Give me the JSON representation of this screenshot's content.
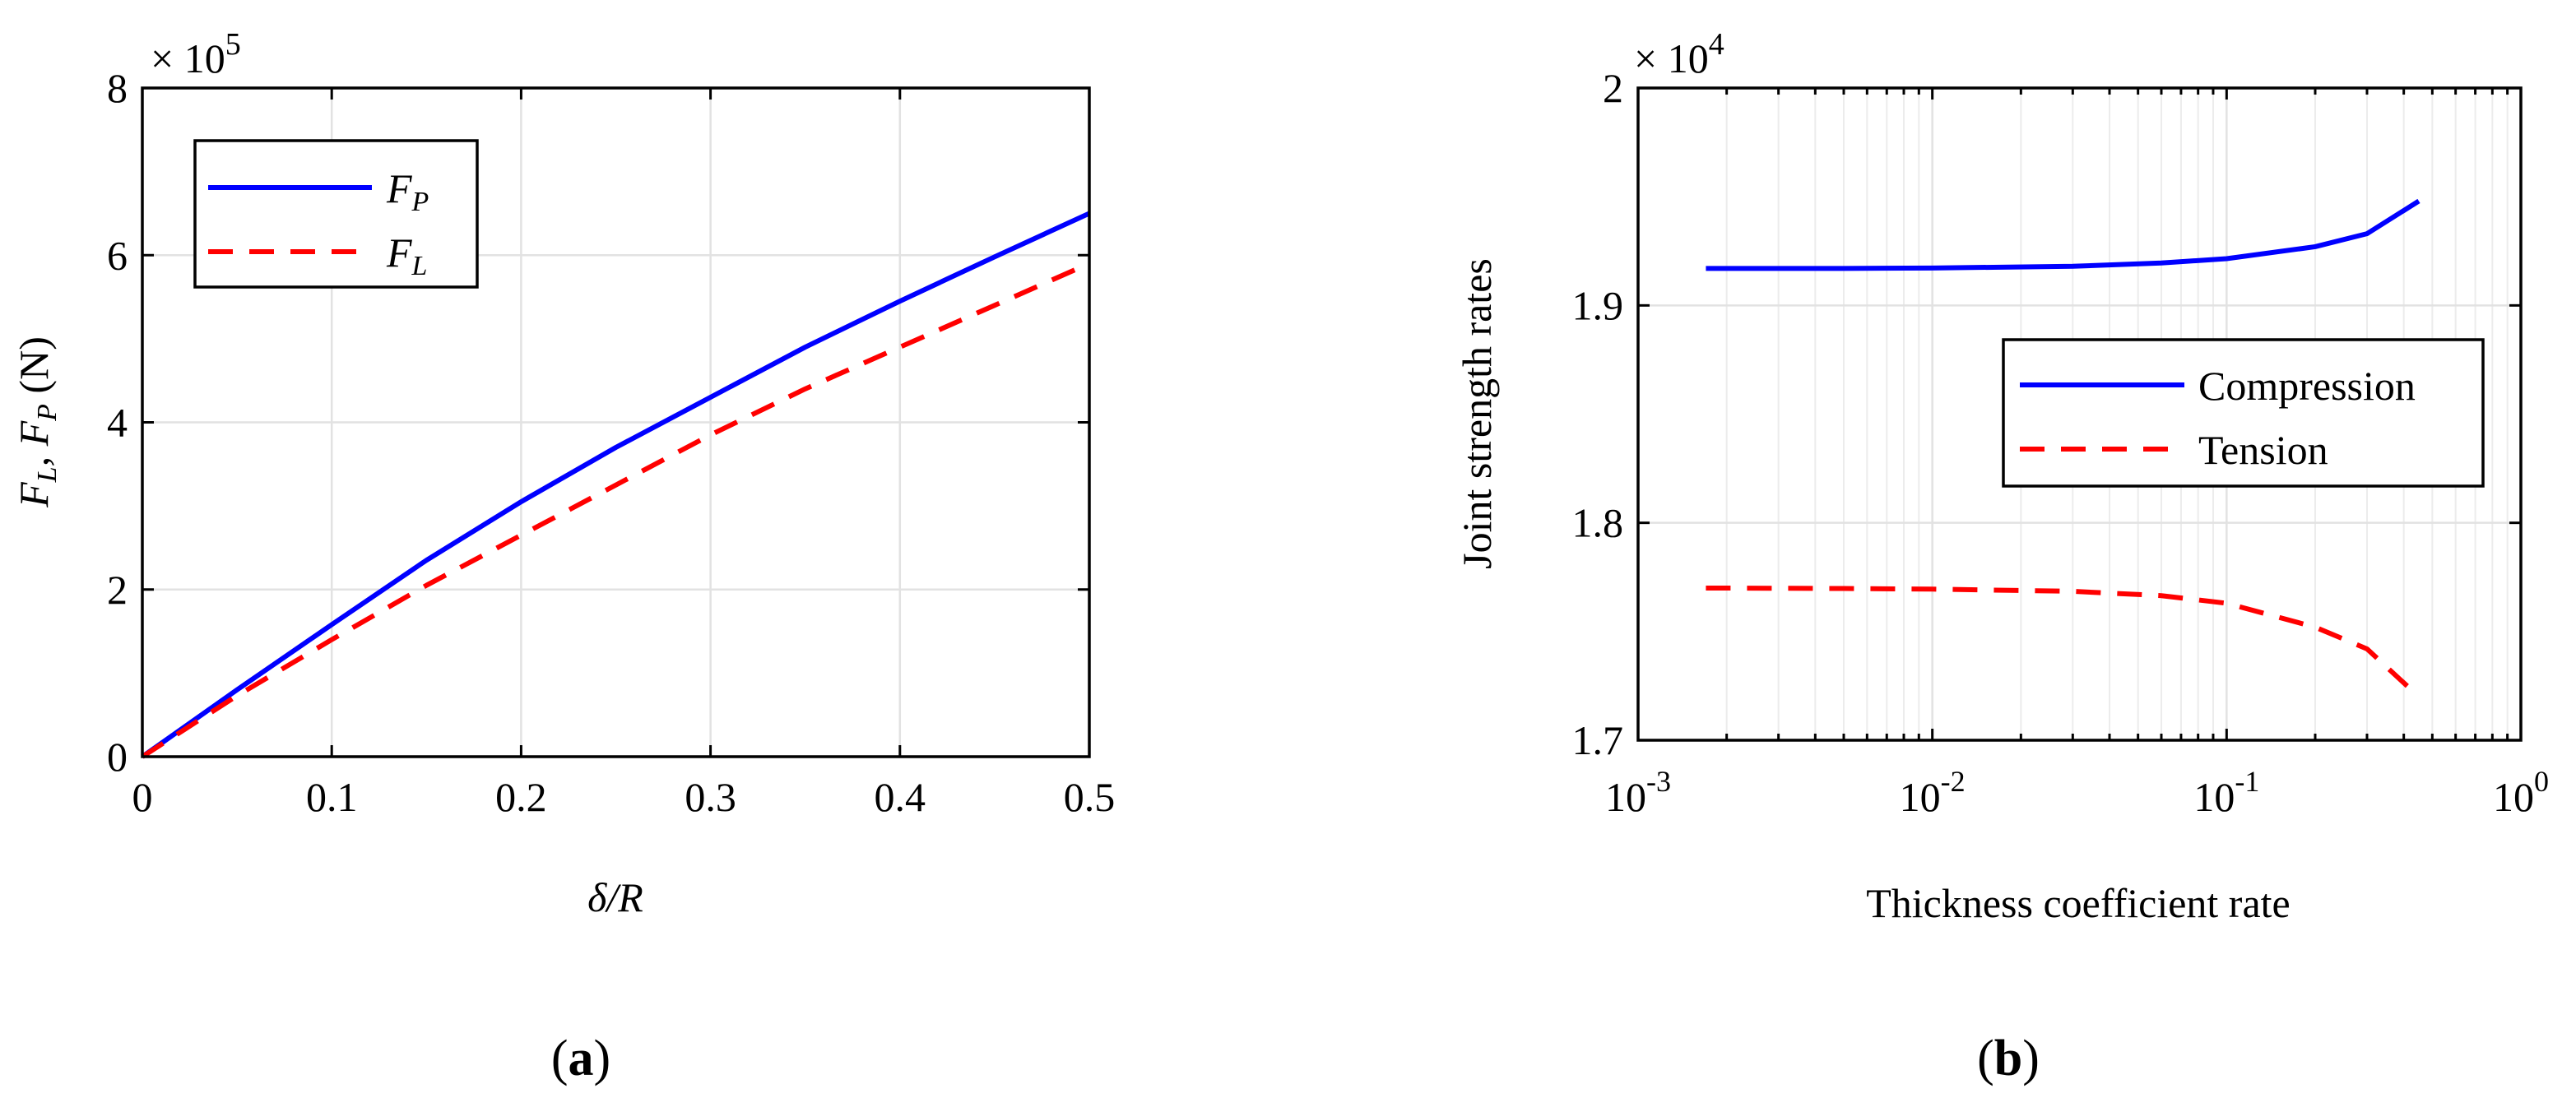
{
  "chart_data": [
    {
      "type": "line",
      "panel": "(a)",
      "panel_label": {
        "open": "(",
        "letter": "a",
        "close": ")"
      },
      "xlabel": {
        "main": "δ/R"
      },
      "ylabel": {
        "parts": [
          "F",
          "L",
          ", F",
          "P",
          " (N)"
        ]
      },
      "xlim": [
        0,
        0.5
      ],
      "ylim": [
        0,
        800000
      ],
      "grid": true,
      "legend_position": "top-left",
      "x_ticks": [
        0,
        0.1,
        0.2,
        0.3,
        0.4,
        0.5
      ],
      "x_tick_labels": [
        "0",
        "0.1",
        "0.2",
        "0.3",
        "0.4",
        "0.5"
      ],
      "y_ticks": [
        0,
        200000,
        400000,
        600000,
        800000
      ],
      "y_tick_labels": [
        "0",
        "2",
        "4",
        "6",
        "8"
      ],
      "exponent": {
        "base": "× 10",
        "power": "5"
      },
      "series": [
        {
          "name": "F_P",
          "legend_main": "F",
          "legend_sub": "P",
          "color": "#0000ff",
          "dash": "solid",
          "x": [
            0,
            0.05,
            0.1,
            0.15,
            0.2,
            0.25,
            0.3,
            0.35,
            0.4,
            0.45,
            0.5
          ],
          "values": [
            0,
            80000,
            158000,
            235000,
            305000,
            370000,
            430000,
            490000,
            545000,
            598000,
            650000
          ]
        },
        {
          "name": "F_L",
          "legend_main": "F",
          "legend_sub": "L",
          "color": "#ff0000",
          "dash": "dashed",
          "x": [
            0,
            0.05,
            0.1,
            0.15,
            0.2,
            0.25,
            0.3,
            0.35,
            0.4,
            0.45,
            0.5
          ],
          "values": [
            0,
            73000,
            140000,
            205000,
            265000,
            325000,
            385000,
            440000,
            490000,
            540000,
            590000
          ]
        }
      ]
    },
    {
      "type": "line",
      "panel": "(b)",
      "panel_label": {
        "open": "(",
        "letter": "b",
        "close": ")"
      },
      "xlabel": {
        "main": "Thickness coefficient rate"
      },
      "ylabel": {
        "main": "Joint strength rates"
      },
      "xscale": "log",
      "xlim": [
        0.001,
        1
      ],
      "ylim": [
        17000,
        20000
      ],
      "grid": true,
      "legend_position": "center-right",
      "x_ticks": [
        0.001,
        0.01,
        0.1,
        1
      ],
      "x_tick_labels": [
        {
          "base": "10",
          "power": "-3"
        },
        {
          "base": "10",
          "power": "-2"
        },
        {
          "base": "10",
          "power": "-1"
        },
        {
          "base": "10",
          "power": "0"
        }
      ],
      "y_ticks": [
        17000,
        18000,
        19000,
        20000
      ],
      "y_tick_labels": [
        "1.7",
        "1.8",
        "1.9",
        "2"
      ],
      "exponent": {
        "base": "× 10",
        "power": "4"
      },
      "series": [
        {
          "name": "Compression",
          "color": "#0000ff",
          "dash": "solid",
          "x": [
            0.0017,
            0.005,
            0.01,
            0.03,
            0.06,
            0.1,
            0.2,
            0.3,
            0.45
          ],
          "values": [
            19170,
            19170,
            19172,
            19180,
            19195,
            19215,
            19270,
            19330,
            19480
          ]
        },
        {
          "name": "Tension",
          "color": "#ff0000",
          "dash": "dashed",
          "x": [
            0.0017,
            0.005,
            0.01,
            0.03,
            0.06,
            0.1,
            0.2,
            0.3,
            0.45
          ],
          "values": [
            17700,
            17698,
            17695,
            17685,
            17665,
            17630,
            17520,
            17420,
            17200
          ]
        }
      ]
    }
  ]
}
